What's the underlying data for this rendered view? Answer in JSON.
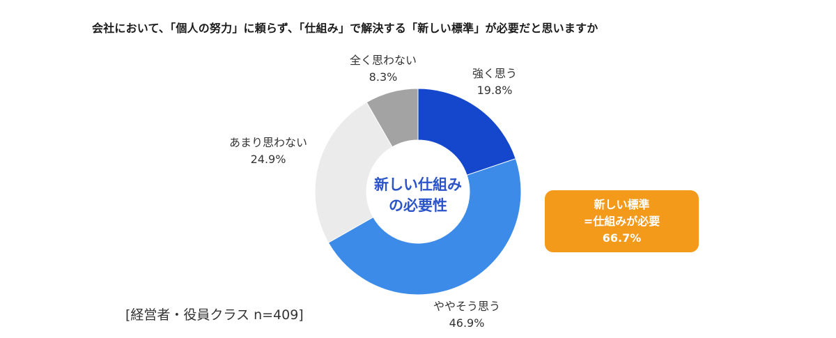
{
  "chart_data": {
    "type": "pie",
    "variant": "donut",
    "title": "会社において、「個人の努力」に頼らず、「仕組み」で解決する「新しい標準」が必要だと思いますか",
    "slices": [
      {
        "label": "強く思う",
        "value": 19.8,
        "value_text": "19.8%",
        "color": "#1447cc"
      },
      {
        "label": "ややそう思う",
        "value": 46.9,
        "value_text": "46.9%",
        "color": "#3c8be9"
      },
      {
        "label": "あまり思わない",
        "value": 24.9,
        "value_text": "24.9%",
        "color": "#ebebeb"
      },
      {
        "label": "全く思わない",
        "value": 8.3,
        "value_text": "8.3%",
        "color": "#a3a3a3"
      }
    ],
    "center_label": {
      "line1": "新しい仕組み",
      "line2": "の必要性"
    },
    "callout": {
      "line1": "新しい標準",
      "line2": "=仕組みが必要",
      "line3": "66.7%",
      "color": "#f39a1a"
    },
    "sample_note": "[経営者・役員クラス n=409]"
  }
}
